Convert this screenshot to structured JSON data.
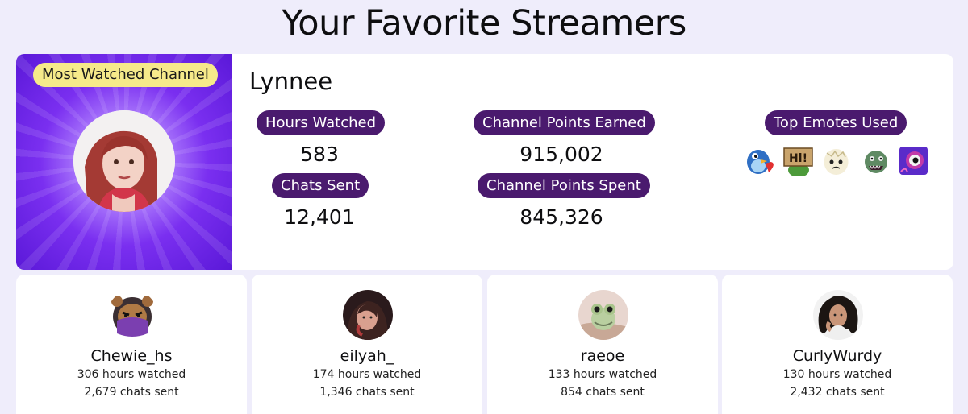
{
  "page": {
    "title": "Your Favorite Streamers"
  },
  "featured": {
    "badge": "Most Watched Channel",
    "name": "Lynnee",
    "stats": {
      "hours_watched": {
        "label": "Hours Watched",
        "value": "583"
      },
      "chats_sent": {
        "label": "Chats Sent",
        "value": "12,401"
      },
      "points_earned": {
        "label": "Channel Points Earned",
        "value": "915,002"
      },
      "points_spent": {
        "label": "Channel Points Spent",
        "value": "845,326"
      }
    },
    "emotes": {
      "label": "Top Emotes Used",
      "items": [
        "blue-bird-heart-emote",
        "pepe-hi-sign-emote",
        "egg-face-emote",
        "green-monster-emote",
        "purple-eye-emote"
      ]
    },
    "colors": {
      "pill": "#4a1a6e",
      "badge": "#f6ea8a",
      "panel": "#7a2ff0"
    }
  },
  "others": [
    {
      "name": "Chewie_hs",
      "hours": "306 hours watched",
      "chats": "2,679 chats sent"
    },
    {
      "name": "eilyah_",
      "hours": "174 hours watched",
      "chats": "1,346 chats sent"
    },
    {
      "name": "raeoe",
      "hours": "133 hours watched",
      "chats": "854 chats sent"
    },
    {
      "name": "CurlyWurdy",
      "hours": "130 hours watched",
      "chats": "2,432 chats sent"
    }
  ]
}
